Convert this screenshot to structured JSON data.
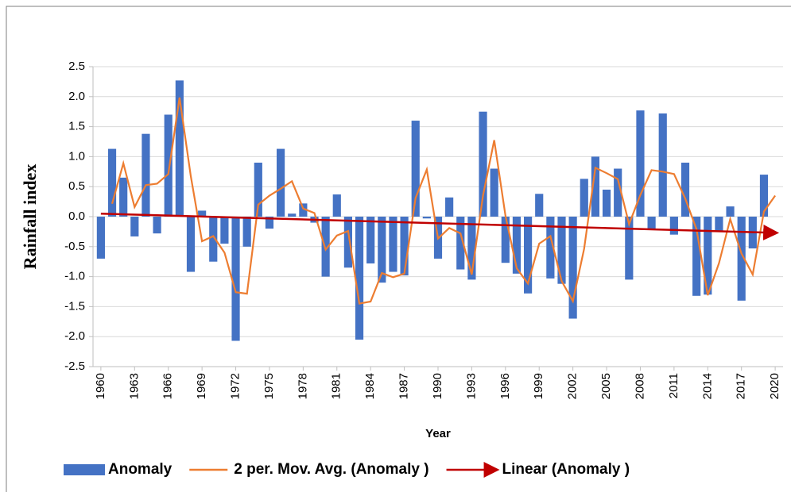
{
  "chart_data": {
    "type": "bar",
    "x": [
      1960,
      1961,
      1962,
      1963,
      1964,
      1965,
      1966,
      1967,
      1968,
      1969,
      1970,
      1971,
      1972,
      1973,
      1974,
      1975,
      1976,
      1977,
      1978,
      1979,
      1980,
      1981,
      1982,
      1983,
      1984,
      1985,
      1986,
      1987,
      1988,
      1989,
      1990,
      1991,
      1992,
      1993,
      1994,
      1995,
      1996,
      1997,
      1998,
      1999,
      2000,
      2001,
      2002,
      2003,
      2004,
      2005,
      2006,
      2007,
      2008,
      2009,
      2010,
      2011,
      2012,
      2013,
      2014,
      2015,
      2016,
      2017,
      2018,
      2019,
      2020
    ],
    "series": [
      {
        "name": "Anomaly",
        "type": "bar",
        "color": "#4472c4",
        "values": [
          -0.7,
          1.13,
          0.65,
          -0.33,
          1.38,
          -0.28,
          1.7,
          2.27,
          -0.92,
          0.1,
          -0.75,
          -0.45,
          -2.07,
          -0.5,
          0.9,
          -0.2,
          1.13,
          0.05,
          0.22,
          -0.1,
          -1.0,
          0.37,
          -0.85,
          -2.05,
          -0.78,
          -1.1,
          -0.92,
          -0.98,
          1.6,
          -0.03,
          -0.7,
          0.32,
          -0.88,
          -1.05,
          1.75,
          0.8,
          -0.77,
          -0.95,
          -1.28,
          0.38,
          -1.03,
          -1.12,
          -1.7,
          0.63,
          1.0,
          0.45,
          0.8,
          -1.05,
          1.77,
          -0.22,
          1.72,
          -0.3,
          0.9,
          -1.32,
          -1.3,
          -0.25,
          0.17,
          -1.4,
          -0.53,
          0.7,
          0.0
        ]
      },
      {
        "name": "2 per. Mov. Avg. (Anomaly )",
        "type": "line",
        "color": "#ed7d31",
        "values": [
          null,
          0.215,
          0.89,
          0.16,
          0.525,
          0.55,
          0.71,
          1.985,
          0.675,
          -0.41,
          -0.325,
          -0.6,
          -1.26,
          -1.285,
          0.2,
          0.35,
          0.465,
          0.59,
          0.135,
          0.06,
          -0.55,
          -0.315,
          -0.24,
          -1.45,
          -1.415,
          -0.94,
          -1.01,
          -0.95,
          0.31,
          0.785,
          -0.365,
          -0.19,
          -0.28,
          -0.965,
          0.35,
          1.275,
          0.015,
          -0.86,
          -1.115,
          -0.45,
          -0.325,
          -1.075,
          -1.41,
          -0.535,
          0.815,
          0.725,
          0.625,
          -0.125,
          0.36,
          0.775,
          0.75,
          0.71,
          0.3,
          -0.21,
          -1.31,
          -0.775,
          -0.04,
          -0.615,
          -0.965,
          0.085,
          0.35
        ]
      },
      {
        "name": "Linear (Anomaly )",
        "type": "trend",
        "color": "#c00000",
        "x": [
          1960,
          2020
        ],
        "values": [
          0.05,
          -0.27
        ]
      }
    ],
    "xlabel": "Year",
    "ylabel": "Rainfall index",
    "xlim": [
      1959.3,
      2020.7
    ],
    "ylim": [
      -2.5,
      2.5
    ],
    "xticks": [
      1960,
      1963,
      1966,
      1969,
      1972,
      1975,
      1978,
      1981,
      1984,
      1987,
      1990,
      1993,
      1996,
      1999,
      2002,
      2005,
      2008,
      2011,
      2014,
      2017,
      2020
    ],
    "yticks": [
      -2.5,
      {
        "value": -2,
        "label": "-2.0"
      },
      -1.5,
      {
        "value": -1,
        "label": "-1.0"
      },
      -0.5,
      {
        "value": 0,
        "label": "0.0"
      },
      0.5,
      {
        "value": 1,
        "label": "1.0"
      },
      1.5,
      {
        "value": 2,
        "label": "2.0"
      },
      2.5
    ],
    "grid": true,
    "legend": "bottom"
  }
}
